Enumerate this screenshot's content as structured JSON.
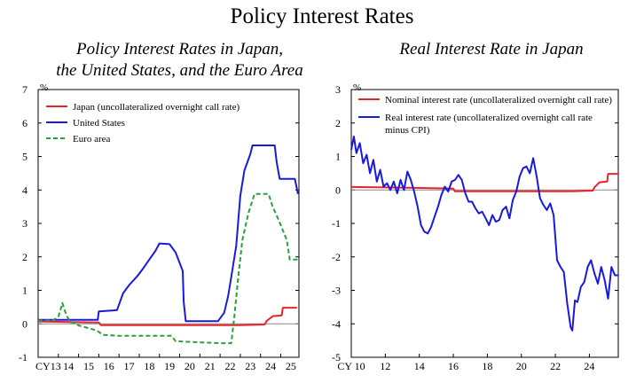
{
  "page": {
    "title": "Policy Interest Rates"
  },
  "colors": {
    "japan": "#e8262a",
    "us": "#1a1adb",
    "euro": "#2e9e3a",
    "nominal": "#e8262a",
    "real": "#1a1adb",
    "zero_line": "#888888"
  },
  "chart_data": [
    {
      "type": "line",
      "title": "Policy Interest Rates in Japan,",
      "title_line2": "the United States, and the Euro Area",
      "ylabel": "%",
      "ylim": [
        -1,
        7
      ],
      "yticks": [
        "-1",
        "0",
        "1",
        "2",
        "3",
        "4",
        "5",
        "6",
        "7"
      ],
      "xlim": [
        2013,
        2025.9
      ],
      "xtick_labels": [
        "CY13",
        "14",
        "15",
        "16",
        "17",
        "18",
        "19",
        "20",
        "21",
        "22",
        "23",
        "24",
        "25"
      ],
      "legend": [
        "Japan (uncollateralized overnight call rate)",
        "United States",
        "Euro area"
      ],
      "series": [
        {
          "name": "Japan (uncollateralized overnight call rate)",
          "key": "japan",
          "x": [
            2013.0,
            2016.0,
            2016.1,
            2023.0,
            2024.2,
            2024.3,
            2024.6,
            2025.05,
            2025.1,
            2025.8
          ],
          "y": [
            0.07,
            0.04,
            -0.04,
            -0.04,
            -0.02,
            0.08,
            0.23,
            0.25,
            0.48,
            0.48
          ]
        },
        {
          "name": "United States",
          "key": "us",
          "x": [
            2013.0,
            2015.95,
            2016.0,
            2016.9,
            2017.2,
            2017.5,
            2017.9,
            2018.2,
            2018.5,
            2018.8,
            2019.0,
            2019.5,
            2019.8,
            2020.15,
            2020.2,
            2020.3,
            2021.9,
            2022.2,
            2022.4,
            2022.6,
            2022.8,
            2023.0,
            2023.2,
            2023.5,
            2023.6,
            2024.7,
            2024.8,
            2024.95,
            2025.7,
            2025.85
          ],
          "y": [
            0.12,
            0.12,
            0.37,
            0.41,
            0.91,
            1.16,
            1.42,
            1.66,
            1.92,
            2.18,
            2.4,
            2.38,
            2.13,
            1.58,
            0.65,
            0.08,
            0.08,
            0.33,
            0.83,
            1.58,
            2.33,
            3.83,
            4.58,
            5.08,
            5.33,
            5.33,
            4.83,
            4.33,
            4.33,
            3.88
          ]
        },
        {
          "name": "Euro area",
          "key": "euro",
          "x": [
            2013.0,
            2013.7,
            2014.0,
            2014.2,
            2014.4,
            2014.6,
            2014.8,
            2015.0,
            2015.5,
            2015.9,
            2016.2,
            2017.0,
            2018.0,
            2019.6,
            2019.8,
            2022.0,
            2022.55,
            2022.7,
            2022.9,
            2023.1,
            2023.4,
            2023.7,
            2024.4,
            2024.6,
            2024.9,
            2025.3,
            2025.45,
            2025.85
          ],
          "y": [
            0.1,
            0.1,
            0.2,
            0.62,
            0.25,
            0.05,
            0.02,
            -0.05,
            -0.13,
            -0.2,
            -0.33,
            -0.36,
            -0.36,
            -0.36,
            -0.52,
            -0.58,
            -0.58,
            0.2,
            1.4,
            2.5,
            3.3,
            3.88,
            3.88,
            3.5,
            3.1,
            2.5,
            1.92,
            1.92
          ]
        }
      ]
    },
    {
      "type": "line",
      "title": "Real Interest Rate in Japan",
      "ylabel": "%",
      "ylim": [
        -5,
        3
      ],
      "yticks": [
        "-5",
        "-4",
        "-3",
        "-2",
        "-1",
        "0",
        "1",
        "2",
        "3"
      ],
      "xlim": [
        2010,
        2025.7
      ],
      "xtick_labels": [
        "CY 10",
        "12",
        "14",
        "16",
        "18",
        "20",
        "22",
        "24"
      ],
      "legend": [
        "Nominal interest rate (uncollateralized overnight call rate)",
        "Real interest rate (uncollateralized overnight call rate",
        "minus CPI)"
      ],
      "series": [
        {
          "name": "Nominal interest rate",
          "key": "nominal",
          "x": [
            2010.0,
            2013.0,
            2016.0,
            2016.1,
            2023.0,
            2024.2,
            2024.3,
            2024.6,
            2025.05,
            2025.1,
            2025.7
          ],
          "y": [
            0.09,
            0.07,
            0.04,
            -0.04,
            -0.04,
            -0.02,
            0.08,
            0.23,
            0.25,
            0.48,
            0.48
          ]
        },
        {
          "name": "Real interest rate",
          "key": "real",
          "x": [
            2010.0,
            2010.15,
            2010.3,
            2010.5,
            2010.7,
            2010.9,
            2011.1,
            2011.3,
            2011.5,
            2011.7,
            2011.9,
            2012.1,
            2012.3,
            2012.5,
            2012.7,
            2012.9,
            2013.1,
            2013.3,
            2013.5,
            2013.7,
            2013.9,
            2014.1,
            2014.3,
            2014.5,
            2014.7,
            2014.9,
            2015.1,
            2015.3,
            2015.5,
            2015.7,
            2015.9,
            2016.1,
            2016.3,
            2016.5,
            2016.7,
            2016.9,
            2017.1,
            2017.3,
            2017.5,
            2017.7,
            2017.9,
            2018.1,
            2018.3,
            2018.5,
            2018.7,
            2018.9,
            2019.1,
            2019.3,
            2019.5,
            2019.7,
            2019.9,
            2020.1,
            2020.3,
            2020.5,
            2020.7,
            2020.9,
            2021.1,
            2021.3,
            2021.5,
            2021.7,
            2021.9,
            2022.1,
            2022.3,
            2022.5,
            2022.7,
            2022.9,
            2023.0,
            2023.15,
            2023.3,
            2023.5,
            2023.7,
            2023.9,
            2024.1,
            2024.3,
            2024.5,
            2024.7,
            2024.9,
            2025.1,
            2025.3,
            2025.5,
            2025.7
          ],
          "y": [
            1.2,
            1.6,
            1.1,
            1.4,
            0.8,
            1.05,
            0.5,
            0.9,
            0.25,
            0.6,
            0.1,
            0.2,
            0.0,
            0.25,
            -0.1,
            0.3,
            0.0,
            0.55,
            0.3,
            -0.05,
            -0.5,
            -1.05,
            -1.25,
            -1.3,
            -1.1,
            -0.8,
            -0.5,
            -0.15,
            0.1,
            -0.05,
            0.25,
            0.3,
            0.45,
            0.3,
            -0.1,
            -0.35,
            -0.35,
            -0.55,
            -0.7,
            -0.65,
            -0.85,
            -1.05,
            -0.75,
            -0.95,
            -0.9,
            -0.6,
            -0.5,
            -0.85,
            -0.3,
            -0.05,
            0.4,
            0.65,
            0.7,
            0.5,
            0.95,
            0.4,
            -0.25,
            -0.45,
            -0.6,
            -0.4,
            -0.75,
            -2.1,
            -2.3,
            -2.45,
            -3.4,
            -4.1,
            -4.2,
            -3.3,
            -3.35,
            -2.9,
            -2.75,
            -2.3,
            -2.1,
            -2.5,
            -2.8,
            -2.3,
            -2.7,
            -3.25,
            -2.3,
            -2.55,
            -2.55
          ]
        }
      ]
    }
  ]
}
